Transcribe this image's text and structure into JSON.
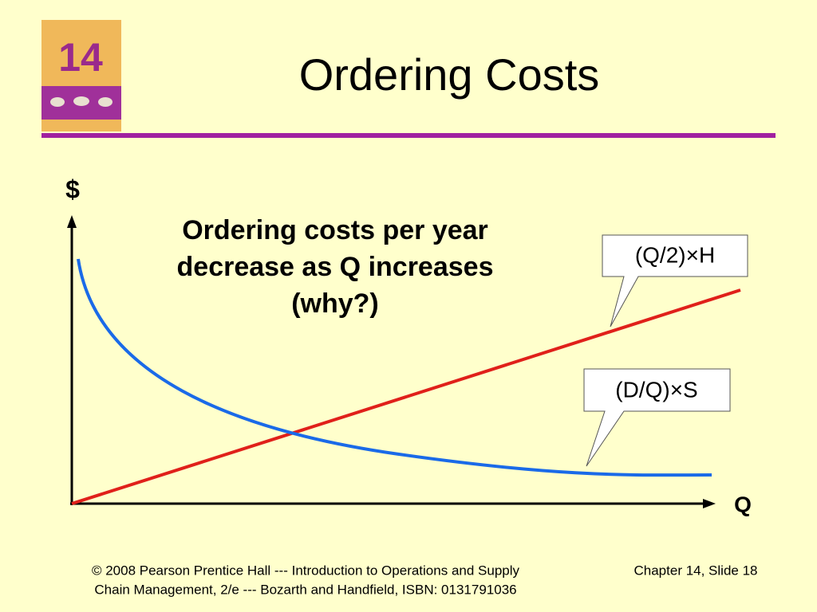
{
  "logo": {
    "number": "14"
  },
  "title": "Ordering Costs",
  "diagram": {
    "y_axis_label": "$",
    "x_axis_label": "Q",
    "annotation": [
      "Ordering costs per year",
      "decrease as Q increases",
      "(why?)"
    ],
    "callouts": [
      "(Q/2)×H",
      "(D/Q)×S"
    ]
  },
  "footer": {
    "credit": [
      "© 2008 Pearson Prentice Hall --- Introduction to Operations and Supply",
      "Chain Management, 2/e --- Bozarth and Handfield, ISBN: 0131791036"
    ],
    "slide": "Chapter 14, Slide 18"
  }
}
